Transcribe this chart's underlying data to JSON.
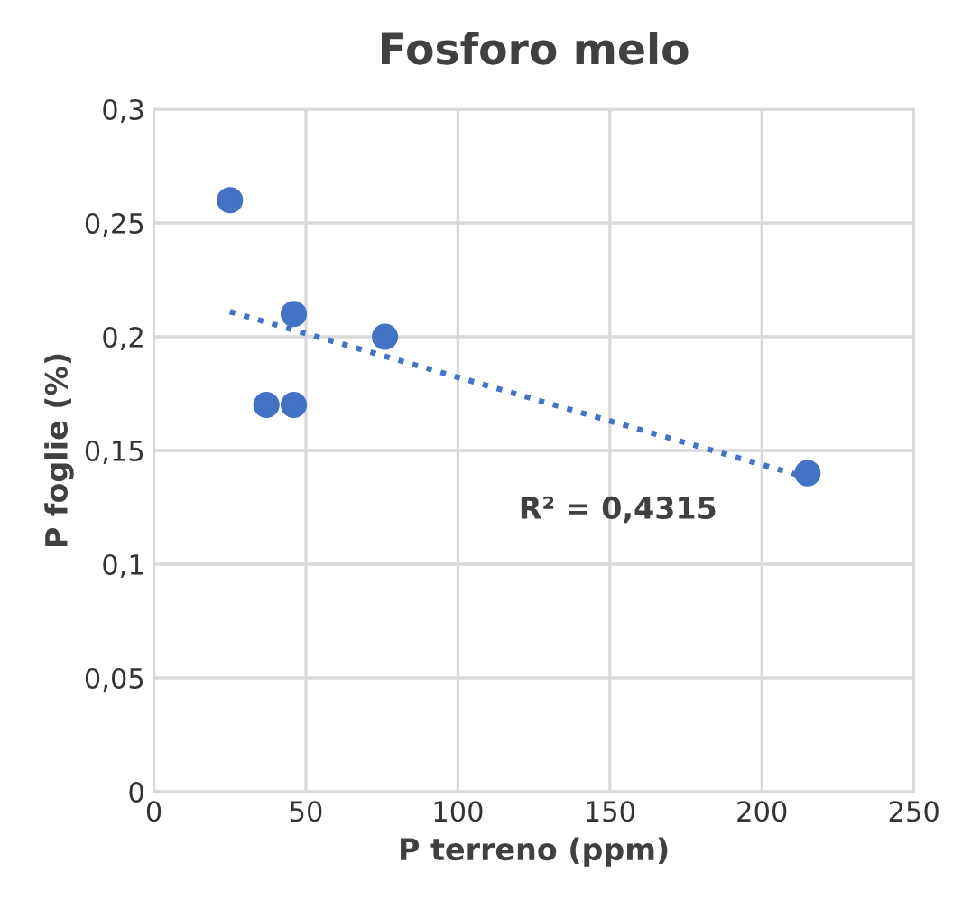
{
  "chart_data": {
    "type": "scatter",
    "title": "Fosforo melo",
    "xlabel": "P terreno (ppm)",
    "ylabel": "P foglie (%)",
    "x": [
      25,
      37,
      46,
      46,
      76,
      215
    ],
    "series": [
      {
        "color": "#4472c4",
        "marker": "circle",
        "values": [
          0.26,
          0.17,
          0.17,
          0.21,
          0.2,
          0.14
        ]
      },
      {
        "type": "line",
        "color": "#4472c4",
        "line_style": "dotted",
        "marker": "none",
        "x": [
          25,
          215
        ],
        "values": [
          0.211,
          0.138
        ]
      }
    ],
    "annotations": [
      "R² = 0,4315"
    ],
    "xlim": [
      0,
      250
    ],
    "xticks": [
      0,
      50,
      100,
      150,
      200,
      250
    ],
    "ylim": [
      0,
      0.3
    ],
    "yticks": [
      {
        "value": 0,
        "label": "0"
      },
      {
        "value": 0.05,
        "label": "0,05"
      },
      {
        "value": 0.1,
        "label": "0,1"
      },
      {
        "value": 0.15,
        "label": "0,15"
      },
      {
        "value": 0.2,
        "label": "0,2"
      },
      {
        "value": 0.25,
        "label": "0,25"
      },
      {
        "value": 0.3,
        "label": "0,3"
      }
    ],
    "grid": true,
    "legend": false
  }
}
